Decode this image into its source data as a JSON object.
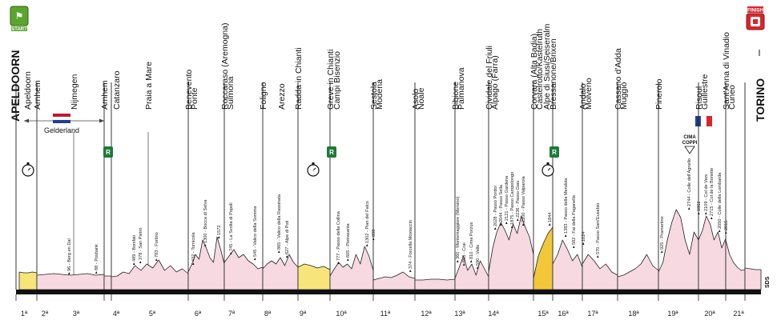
{
  "start_label": "START",
  "finish_label": "FINISH",
  "start_city": "APELDOORN",
  "finish_city": "TORINO",
  "region_label": "Gelderland",
  "cima_coppi": [
    "CIMA",
    "COPPI"
  ],
  "credit": "SDS",
  "rest_marker": "R",
  "colors": {
    "start_badge": "#5aa62d",
    "finish_badge": "#d8262c",
    "regular_fill": "#f7d9e2",
    "tt_fill": "#f7e57a",
    "tt_mtn_fill": "#f2c83a",
    "outline": "#222222",
    "ground": "#111111",
    "rest_badge": "#1d7a3a"
  },
  "towns": [
    "Apeldoorn",
    "Arnhem",
    "Nijmegen",
    "Arnhem",
    "Catanzaro",
    "Praia a Mare",
    "Benevento",
    "Ponte",
    "Roccaraso (Aremogna)",
    "Sulmona",
    "Foligno",
    "Arezzo",
    "Radda in Chianti",
    "Greve in Chianti",
    "Campi Bisenzio",
    "Sestola",
    "Modena",
    "Asolo",
    "Noale",
    "Bibione",
    "Palmanova",
    "Cividale del Friuli",
    "Alpago (Farra)",
    "Corvara (Alta Badia)",
    "Castelrotto/Kastelruth",
    "Alpe di Siusi/Seiseralm",
    "Bressanone/Brixen",
    "Andalo",
    "Molveno",
    "Cassano d'Adda",
    "Muggiò",
    "Pinerolo",
    "Risoul",
    "Guillestre",
    "Sant'Anna di Vinadio",
    "Cuneo"
  ],
  "stages": [
    "1ª",
    "2ª",
    "3ª",
    "4ª",
    "5ª",
    "6ª",
    "7ª",
    "8ª",
    "9ª",
    "10ª",
    "11ª",
    "12ª",
    "13ª",
    "14ª",
    "15ª",
    "16ª",
    "17ª",
    "18ª",
    "19ª",
    "20ª",
    "21ª"
  ],
  "peaks": [
    "96 - Berg en Dal",
    "88 - Posbank",
    "489 - Bonifati",
    "378 - San Pietro",
    "783 - Fortino",
    "432 - Tornicola",
    "1300 - Bocca di Selva",
    "1572",
    "745 - La Svolta di Popoli",
    "545 - Valico della Somma",
    "865 - Valico della Rassinata",
    "627 - Alpe di Poti",
    "777 - Passo della Collina",
    "605 - Pietrasanta",
    "1302 - Pian del Falco",
    "898",
    "374 - Forcella Mostaccin",
    "360 - Montemaggiore (Mersino)",
    "653 - Crai",
    "810 - Cima Porzus",
    "590 - Valle",
    "2028 - Passo Pordoi",
    "2044 - Passo Sella",
    "2121 - Passo Gardena",
    "1875 - Passo Campolongo",
    "2236 - Passo Giau",
    "2200 - Passo Valparola",
    "1844",
    "1383 - Passo della Mendola",
    "582 - Fai della Paganella",
    "1024",
    "570 - Passo Sant'Eusebio",
    "925 - Pramartino",
    "2744 - Colle dell'Agnello",
    "1862",
    "2109 - Col de Vars",
    "2715 - Col de la Bonette",
    "2050 - Colle della Lombarda",
    "2015"
  ]
}
